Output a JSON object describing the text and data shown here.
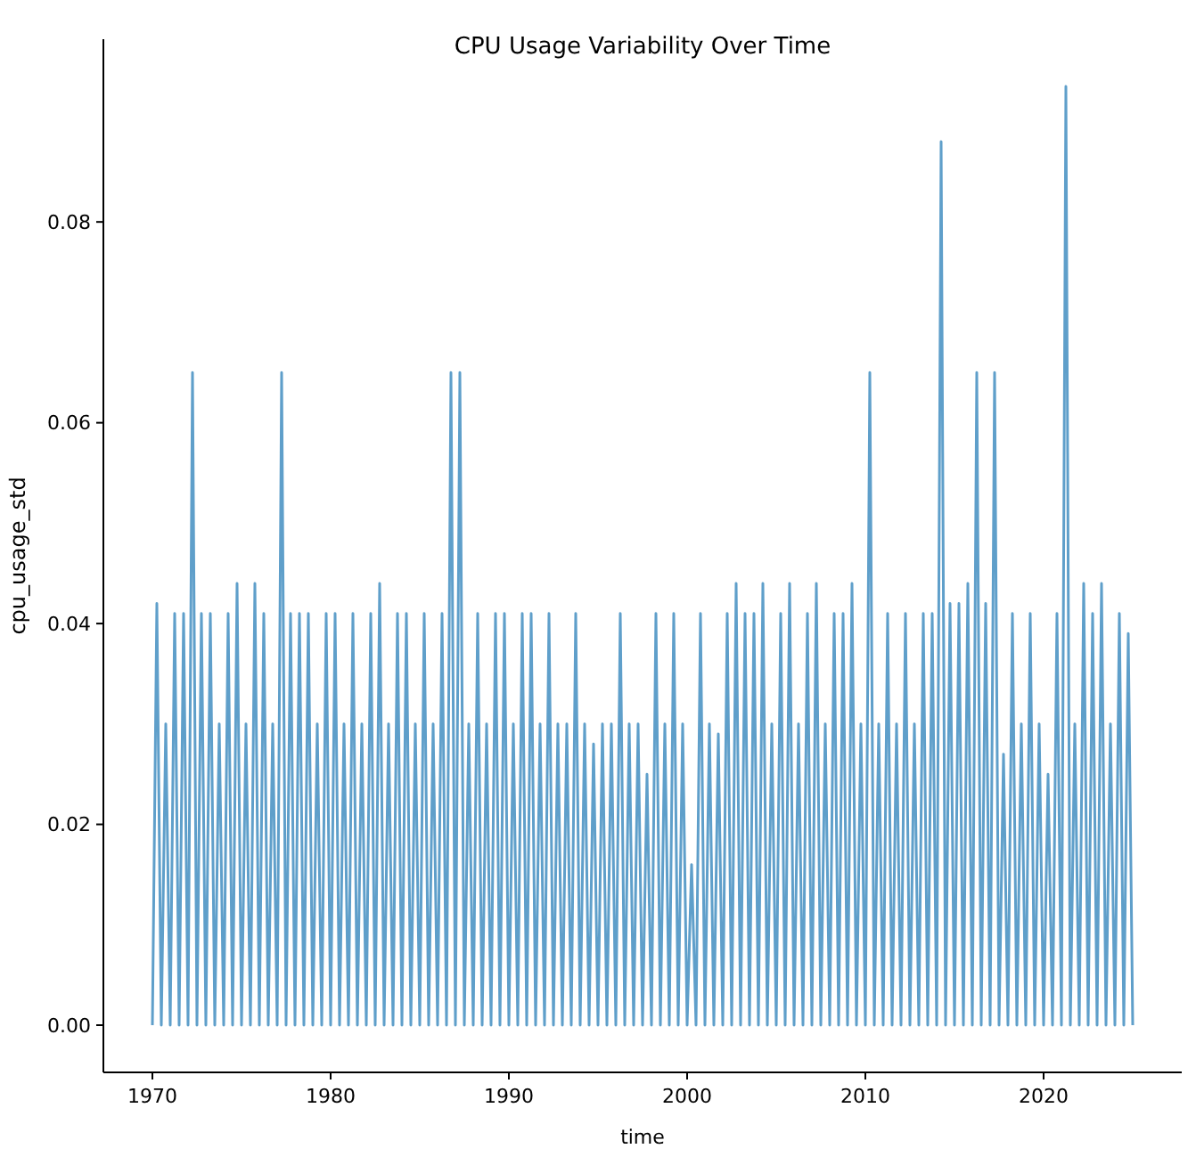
{
  "chart_data": {
    "type": "line",
    "title": "CPU Usage Variability Over Time",
    "xlabel": "time",
    "ylabel": "cpu_usage_std",
    "xlim": [
      1967.25,
      2027.75
    ],
    "xticks": [
      1970,
      1980,
      1990,
      2000,
      2010,
      2020
    ],
    "ylim": [
      -0.0047,
      0.0982
    ],
    "yticks": [
      {
        "value": 0,
        "label": "0.00"
      },
      {
        "value": 0.02,
        "label": "0.02"
      },
      {
        "value": 0.04,
        "label": "0.04"
      },
      {
        "value": 0.06,
        "label": "0.06"
      },
      {
        "value": 0.08,
        "label": "0.08"
      }
    ],
    "grid": false,
    "line_style": "solid",
    "marker": "none",
    "x": [
      1970,
      1970.25,
      1970.5,
      1970.75,
      1971,
      1971.25,
      1971.5,
      1971.75,
      1972,
      1972.25,
      1972.5,
      1972.75,
      1973,
      1973.25,
      1973.5,
      1973.75,
      1974,
      1974.25,
      1974.5,
      1974.75,
      1975,
      1975.25,
      1975.5,
      1975.75,
      1976,
      1976.25,
      1976.5,
      1976.75,
      1977,
      1977.25,
      1977.5,
      1977.75,
      1978,
      1978.25,
      1978.5,
      1978.75,
      1979,
      1979.25,
      1979.5,
      1979.75,
      1980,
      1980.25,
      1980.5,
      1980.75,
      1981,
      1981.25,
      1981.5,
      1981.75,
      1982,
      1982.25,
      1982.5,
      1982.75,
      1983,
      1983.25,
      1983.5,
      1983.75,
      1984,
      1984.25,
      1984.5,
      1984.75,
      1985,
      1985.25,
      1985.5,
      1985.75,
      1986,
      1986.25,
      1986.5,
      1986.75,
      1987,
      1987.25,
      1987.5,
      1987.75,
      1988,
      1988.25,
      1988.5,
      1988.75,
      1989,
      1989.25,
      1989.5,
      1989.75,
      1990,
      1990.25,
      1990.5,
      1990.75,
      1991,
      1991.25,
      1991.5,
      1991.75,
      1992,
      1992.25,
      1992.5,
      1992.75,
      1993,
      1993.25,
      1993.5,
      1993.75,
      1994,
      1994.25,
      1994.5,
      1994.75,
      1995,
      1995.25,
      1995.5,
      1995.75,
      1996,
      1996.25,
      1996.5,
      1996.75,
      1997,
      1997.25,
      1997.5,
      1997.75,
      1998,
      1998.25,
      1998.5,
      1998.75,
      1999,
      1999.25,
      1999.5,
      1999.75,
      2000,
      2000.25,
      2000.5,
      2000.75,
      2001,
      2001.25,
      2001.5,
      2001.75,
      2002,
      2002.25,
      2002.5,
      2002.75,
      2003,
      2003.25,
      2003.5,
      2003.75,
      2004,
      2004.25,
      2004.5,
      2004.75,
      2005,
      2005.25,
      2005.5,
      2005.75,
      2006,
      2006.25,
      2006.5,
      2006.75,
      2007,
      2007.25,
      2007.5,
      2007.75,
      2008,
      2008.25,
      2008.5,
      2008.75,
      2009,
      2009.25,
      2009.5,
      2009.75,
      2010,
      2010.25,
      2010.5,
      2010.75,
      2011,
      2011.25,
      2011.5,
      2011.75,
      2012,
      2012.25,
      2012.5,
      2012.75,
      2013,
      2013.25,
      2013.5,
      2013.75,
      2014,
      2014.25,
      2014.5,
      2014.75,
      2015,
      2015.25,
      2015.5,
      2015.75,
      2016,
      2016.25,
      2016.5,
      2016.75,
      2017,
      2017.25,
      2017.5,
      2017.75,
      2018,
      2018.25,
      2018.5,
      2018.75,
      2019,
      2019.25,
      2019.5,
      2019.75,
      2020,
      2020.25,
      2020.5,
      2020.75,
      2021,
      2021.25,
      2021.5,
      2021.75,
      2022,
      2022.25,
      2022.5,
      2022.75,
      2023,
      2023.25,
      2023.5,
      2023.75,
      2024,
      2024.25,
      2024.5,
      2024.75,
      2025
    ],
    "series": [
      {
        "color": "#5f9fca",
        "values": [
          0,
          0.042,
          0,
          0.03,
          0,
          0.041,
          0,
          0.041,
          0,
          0.065,
          0,
          0.041,
          0,
          0.041,
          0,
          0.03,
          0,
          0.041,
          0,
          0.044,
          0,
          0.03,
          0,
          0.044,
          0,
          0.041,
          0,
          0.03,
          0,
          0.065,
          0,
          0.041,
          0,
          0.041,
          0,
          0.041,
          0,
          0.03,
          0,
          0.041,
          0,
          0.041,
          0,
          0.03,
          0,
          0.041,
          0,
          0.03,
          0,
          0.041,
          0,
          0.044,
          0,
          0.03,
          0,
          0.041,
          0,
          0.041,
          0,
          0.03,
          0,
          0.041,
          0,
          0.03,
          0,
          0.041,
          0,
          0.065,
          0,
          0.065,
          0,
          0.03,
          0,
          0.041,
          0,
          0.03,
          0,
          0.041,
          0,
          0.041,
          0,
          0.03,
          0,
          0.041,
          0,
          0.041,
          0,
          0.03,
          0,
          0.041,
          0,
          0.03,
          0,
          0.03,
          0,
          0.041,
          0,
          0.03,
          0,
          0.028,
          0,
          0.03,
          0,
          0.03,
          0,
          0.041,
          0,
          0.03,
          0,
          0.03,
          0,
          0.025,
          0,
          0.041,
          0,
          0.03,
          0,
          0.041,
          0,
          0.03,
          0,
          0.016,
          0,
          0.041,
          0,
          0.03,
          0,
          0.029,
          0,
          0.041,
          0,
          0.044,
          0,
          0.041,
          0,
          0.041,
          0,
          0.044,
          0,
          0.03,
          0,
          0.041,
          0,
          0.044,
          0,
          0.03,
          0,
          0.041,
          0,
          0.044,
          0,
          0.03,
          0,
          0.041,
          0,
          0.041,
          0,
          0.044,
          0,
          0.03,
          0,
          0.065,
          0,
          0.03,
          0,
          0.041,
          0,
          0.03,
          0,
          0.041,
          0,
          0.03,
          0,
          0.041,
          0,
          0.041,
          0,
          0.088,
          0,
          0.042,
          0,
          0.042,
          0,
          0.044,
          0,
          0.065,
          0,
          0.042,
          0,
          0.065,
          0,
          0.027,
          0,
          0.041,
          0,
          0.03,
          0,
          0.041,
          0,
          0.03,
          0,
          0.025,
          0,
          0.041,
          0,
          0.0935,
          0,
          0.03,
          0,
          0.044,
          0,
          0.041,
          0,
          0.044,
          0,
          0.03,
          0,
          0.041,
          0,
          0.039,
          0
        ]
      }
    ]
  }
}
